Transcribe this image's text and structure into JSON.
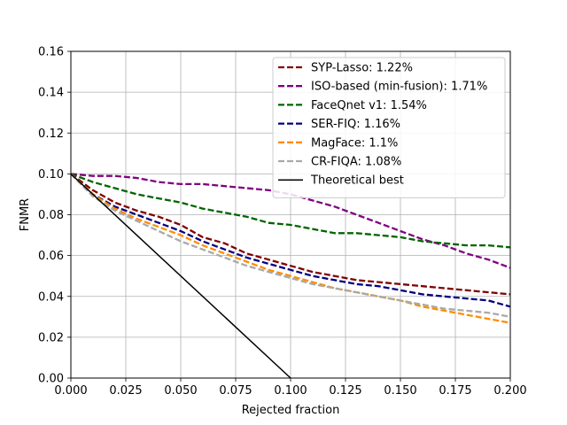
{
  "chart_data": {
    "type": "line",
    "xlabel": "Rejected fraction",
    "ylabel": "FNMR",
    "xlim": [
      0.0,
      0.2
    ],
    "ylim": [
      0.0,
      0.16
    ],
    "x_ticks": [
      "0.000",
      "0.025",
      "0.050",
      "0.075",
      "0.100",
      "0.125",
      "0.150",
      "0.175",
      "0.200"
    ],
    "y_ticks": [
      "0.00",
      "0.02",
      "0.04",
      "0.06",
      "0.08",
      "0.10",
      "0.12",
      "0.14",
      "0.16"
    ],
    "x_tick_values": [
      0.0,
      0.025,
      0.05,
      0.075,
      0.1,
      0.125,
      0.15,
      0.175,
      0.2
    ],
    "y_tick_values": [
      0.0,
      0.02,
      0.04,
      0.06,
      0.08,
      0.1,
      0.12,
      0.14,
      0.16
    ],
    "grid": true,
    "legend_position": "top-right",
    "series": [
      {
        "name": "SYP-Lasso: 1.22%",
        "color": "#800000",
        "style": "dashed",
        "x": [
          0.0,
          0.01,
          0.02,
          0.03,
          0.04,
          0.05,
          0.06,
          0.07,
          0.08,
          0.09,
          0.1,
          0.11,
          0.12,
          0.13,
          0.14,
          0.15,
          0.16,
          0.17,
          0.18,
          0.19,
          0.2
        ],
        "y": [
          0.1,
          0.092,
          0.086,
          0.082,
          0.079,
          0.075,
          0.069,
          0.066,
          0.061,
          0.058,
          0.055,
          0.052,
          0.05,
          0.048,
          0.047,
          0.046,
          0.045,
          0.044,
          0.043,
          0.042,
          0.041
        ]
      },
      {
        "name": "ISO-based (min-fusion): 1.71%",
        "color": "#800080",
        "style": "dashed",
        "x": [
          0.0,
          0.01,
          0.02,
          0.03,
          0.04,
          0.05,
          0.06,
          0.07,
          0.08,
          0.09,
          0.1,
          0.11,
          0.12,
          0.13,
          0.14,
          0.15,
          0.16,
          0.17,
          0.18,
          0.19,
          0.2
        ],
        "y": [
          0.1,
          0.099,
          0.099,
          0.098,
          0.096,
          0.095,
          0.095,
          0.094,
          0.093,
          0.092,
          0.09,
          0.087,
          0.084,
          0.08,
          0.076,
          0.072,
          0.068,
          0.065,
          0.061,
          0.058,
          0.054
        ]
      },
      {
        "name": "FaceQnet v1: 1.54%",
        "color": "#006400",
        "style": "dashed",
        "x": [
          0.0,
          0.01,
          0.02,
          0.03,
          0.04,
          0.05,
          0.06,
          0.07,
          0.08,
          0.09,
          0.1,
          0.11,
          0.12,
          0.13,
          0.14,
          0.15,
          0.16,
          0.17,
          0.18,
          0.19,
          0.2
        ],
        "y": [
          0.1,
          0.096,
          0.093,
          0.09,
          0.088,
          0.086,
          0.083,
          0.081,
          0.079,
          0.076,
          0.075,
          0.073,
          0.071,
          0.071,
          0.07,
          0.069,
          0.067,
          0.066,
          0.065,
          0.065,
          0.064
        ]
      },
      {
        "name": "SER-FIQ: 1.16%",
        "color": "#000080",
        "style": "dashed",
        "x": [
          0.0,
          0.01,
          0.02,
          0.03,
          0.04,
          0.05,
          0.06,
          0.07,
          0.08,
          0.09,
          0.1,
          0.11,
          0.12,
          0.13,
          0.14,
          0.15,
          0.16,
          0.17,
          0.18,
          0.19,
          0.2
        ],
        "y": [
          0.1,
          0.09,
          0.084,
          0.08,
          0.076,
          0.072,
          0.067,
          0.063,
          0.059,
          0.056,
          0.053,
          0.05,
          0.048,
          0.046,
          0.045,
          0.043,
          0.041,
          0.04,
          0.039,
          0.038,
          0.035
        ]
      },
      {
        "name": "MagFace: 1.1%",
        "color": "#ff8c00",
        "style": "dashed",
        "x": [
          0.0,
          0.01,
          0.02,
          0.03,
          0.04,
          0.05,
          0.06,
          0.07,
          0.08,
          0.09,
          0.1,
          0.11,
          0.12,
          0.13,
          0.14,
          0.15,
          0.16,
          0.17,
          0.18,
          0.19,
          0.2
        ],
        "y": [
          0.1,
          0.09,
          0.083,
          0.078,
          0.074,
          0.07,
          0.065,
          0.061,
          0.057,
          0.053,
          0.05,
          0.047,
          0.044,
          0.042,
          0.04,
          0.038,
          0.035,
          0.033,
          0.031,
          0.029,
          0.027
        ]
      },
      {
        "name": "CR-FIQA: 1.08%",
        "color": "#a9a9a9",
        "style": "dashed",
        "x": [
          0.0,
          0.01,
          0.02,
          0.03,
          0.04,
          0.05,
          0.06,
          0.07,
          0.08,
          0.09,
          0.1,
          0.11,
          0.12,
          0.13,
          0.14,
          0.15,
          0.16,
          0.17,
          0.18,
          0.19,
          0.2
        ],
        "y": [
          0.1,
          0.089,
          0.082,
          0.077,
          0.072,
          0.067,
          0.063,
          0.059,
          0.055,
          0.052,
          0.049,
          0.046,
          0.044,
          0.042,
          0.04,
          0.038,
          0.036,
          0.034,
          0.033,
          0.032,
          0.03
        ]
      },
      {
        "name": "Theoretical best",
        "color": "#000000",
        "style": "solid",
        "x": [
          0.0,
          0.1
        ],
        "y": [
          0.1,
          0.0
        ]
      }
    ]
  }
}
